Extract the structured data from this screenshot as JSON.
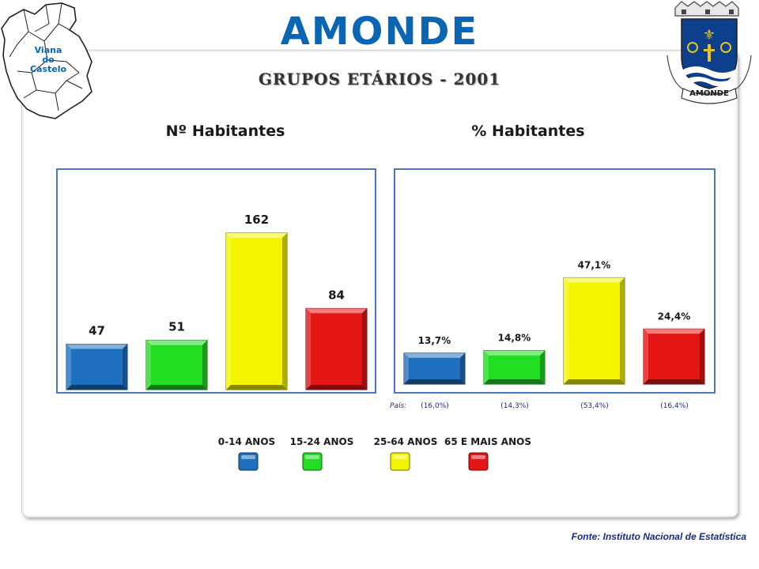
{
  "header": {
    "title": "AMONDE",
    "subtitle": "GRUPOS ETÁRIOS - 2001",
    "map_label_line1": "Viana",
    "map_label_line2": "do",
    "map_label_line3": "Castelo",
    "crest_label": "AMONDE"
  },
  "colors": {
    "blue": "#1f6fbf",
    "green": "#22dd22",
    "yellow": "#f5f500",
    "red": "#e41515",
    "frame": "#4a78c6",
    "title": "#0a66b4"
  },
  "chart_data": [
    {
      "type": "bar",
      "title": "Nº Habitantes",
      "categories": [
        "0-14 ANOS",
        "15-24 ANOS",
        "25-64 ANOS",
        "65 E MAIS ANOS"
      ],
      "values": [
        47,
        51,
        162,
        84
      ],
      "value_labels": [
        "47",
        "51",
        "162",
        "84"
      ],
      "ylim": [
        0,
        180
      ],
      "grid": false
    },
    {
      "type": "bar",
      "title": "% Habitantes",
      "categories": [
        "0-14 ANOS",
        "15-24 ANOS",
        "25-64 ANOS",
        "65 E MAIS ANOS"
      ],
      "values": [
        13.7,
        14.8,
        47.1,
        24.4
      ],
      "value_labels": [
        "13,7%",
        "14,8%",
        "47,1%",
        "24,4%"
      ],
      "country_label": "País:",
      "country_values": [
        "(16,0%)",
        "(14,3%)",
        "(53,4%)",
        "(16,4%)"
      ],
      "ylim": [
        0,
        70
      ],
      "grid": false
    }
  ],
  "legend": {
    "items": [
      {
        "label": "0-14 ANOS",
        "color": "#1f6fbf"
      },
      {
        "label": "15-24 ANOS",
        "color": "#22dd22"
      },
      {
        "label": "25-64 ANOS",
        "color": "#f5f500"
      },
      {
        "label": "65 E MAIS ANOS",
        "color": "#e41515"
      }
    ]
  },
  "footer": {
    "source": "Fonte: Instituto Nacional de Estatística"
  }
}
